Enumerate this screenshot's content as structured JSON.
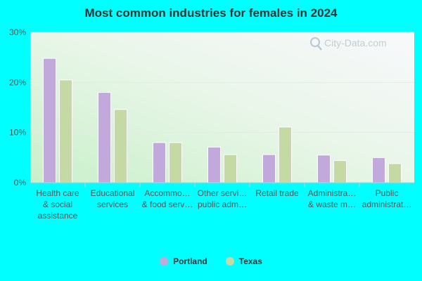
{
  "chart_data": {
    "type": "bar",
    "title": "Most common industries for females in 2024",
    "xlabel": "",
    "ylabel": "",
    "ylim": [
      0,
      30
    ],
    "y_ticks": [
      0,
      10,
      20,
      30
    ],
    "y_tick_labels": [
      "0%",
      "10%",
      "20%",
      "30%"
    ],
    "grid": true,
    "legend_position": "bottom-center",
    "categories": [
      [
        "Health care",
        "& social",
        "assistance"
      ],
      [
        "Educational",
        "services"
      ],
      [
        "Accommo…",
        "& food serv…"
      ],
      [
        "Other servi…",
        "public adm…"
      ],
      [
        "Retail trade"
      ],
      [
        "Administra…",
        "& waste m…"
      ],
      [
        "Public",
        "administrat…"
      ]
    ],
    "series": [
      {
        "name": "Portland",
        "color": "#c1a9db",
        "values": [
          24.8,
          18.0,
          8.0,
          7.1,
          5.6,
          5.5,
          5.0
        ]
      },
      {
        "name": "Texas",
        "color": "#c5d9a5",
        "values": [
          20.5,
          14.6,
          8.0,
          5.6,
          11.1,
          4.4,
          3.8
        ]
      }
    ]
  },
  "watermark": {
    "text": "City-Data.com",
    "icon": "magnifier-icon"
  }
}
